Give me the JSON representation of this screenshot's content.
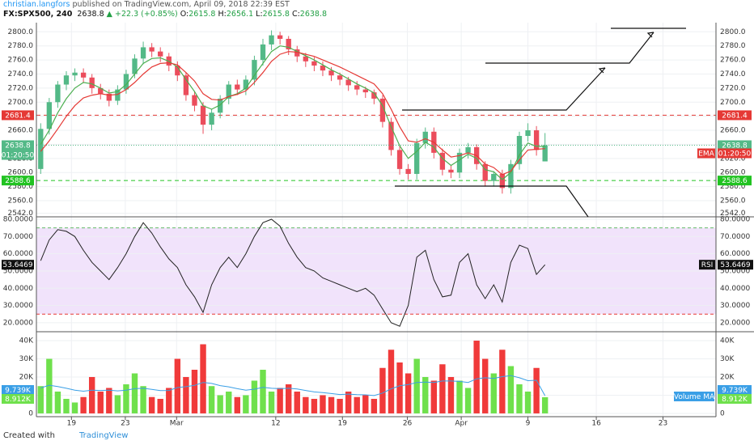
{
  "header": {
    "author": "christian.langfors",
    "published": "published on TradingView.com, April 09, 2018 22:39 EST",
    "symbol": "FX:SPX500, 240",
    "last": "2638.8",
    "arrow": "▲",
    "change": "+22.3 (+0.85%)",
    "ohlc": [
      {
        "label": "O:",
        "value": "2615.8"
      },
      {
        "label": "H:",
        "value": "2656.1"
      },
      {
        "label": "L:",
        "value": "2615.8"
      },
      {
        "label": "C:",
        "value": "2638.8"
      }
    ]
  },
  "footer": {
    "created": "Created with",
    "brand": "TradingView"
  },
  "chart_data": [
    {
      "type": "candlestick",
      "up_color": "#53b987",
      "down_color": "#eb4d5c",
      "open": [
        2605,
        2662,
        2700,
        2725,
        2738,
        2742,
        2735,
        2720,
        2712,
        2702,
        2718,
        2740,
        2762,
        2778,
        2772,
        2765,
        2752,
        2738,
        2710,
        2695,
        2668,
        2685,
        2705,
        2725,
        2718,
        2732,
        2760,
        2782,
        2795,
        2790,
        2775,
        2765,
        2758,
        2752,
        2745,
        2738,
        2732,
        2724,
        2718,
        2714,
        2705,
        2672,
        2632,
        2605,
        2598,
        2642,
        2658,
        2628,
        2604,
        2600,
        2628,
        2636,
        2612,
        2588,
        2598,
        2578,
        2612,
        2652,
        2660,
        2615.8
      ],
      "high": [
        2670,
        2706,
        2730,
        2744,
        2748,
        2748,
        2740,
        2726,
        2718,
        2724,
        2746,
        2768,
        2786,
        2784,
        2778,
        2770,
        2758,
        2742,
        2716,
        2700,
        2690,
        2710,
        2730,
        2732,
        2738,
        2766,
        2790,
        2802,
        2800,
        2794,
        2780,
        2770,
        2764,
        2758,
        2750,
        2742,
        2736,
        2730,
        2722,
        2718,
        2710,
        2678,
        2638,
        2612,
        2648,
        2664,
        2664,
        2634,
        2610,
        2634,
        2642,
        2640,
        2616,
        2602,
        2604,
        2618,
        2658,
        2670,
        2666,
        2656.1
      ],
      "low": [
        2598,
        2654,
        2692,
        2717,
        2730,
        2727,
        2712,
        2704,
        2694,
        2696,
        2712,
        2734,
        2754,
        2764,
        2757,
        2744,
        2730,
        2702,
        2687,
        2655,
        2660,
        2677,
        2697,
        2710,
        2710,
        2724,
        2752,
        2774,
        2782,
        2767,
        2757,
        2750,
        2744,
        2737,
        2730,
        2724,
        2716,
        2710,
        2706,
        2697,
        2664,
        2624,
        2597,
        2590,
        2590,
        2634,
        2620,
        2596,
        2592,
        2592,
        2620,
        2604,
        2580,
        2580,
        2570,
        2570,
        2604,
        2644,
        2624,
        2615.8
      ],
      "close": [
        2662,
        2700,
        2725,
        2738,
        2742,
        2735,
        2720,
        2712,
        2702,
        2718,
        2740,
        2762,
        2778,
        2772,
        2765,
        2752,
        2738,
        2710,
        2695,
        2668,
        2685,
        2705,
        2725,
        2718,
        2732,
        2760,
        2782,
        2795,
        2790,
        2775,
        2765,
        2758,
        2752,
        2745,
        2738,
        2732,
        2724,
        2718,
        2714,
        2705,
        2672,
        2632,
        2605,
        2598,
        2642,
        2658,
        2628,
        2604,
        2600,
        2628,
        2636,
        2612,
        2588,
        2598,
        2578,
        2612,
        2652,
        2660,
        2632,
        2638.8
      ],
      "lines": [
        {
          "color": "#4caf50",
          "values": [
            2640,
            2660,
            2685,
            2705,
            2720,
            2728,
            2726,
            2720,
            2713,
            2715,
            2725,
            2740,
            2755,
            2762,
            2763,
            2758,
            2750,
            2732,
            2715,
            2695,
            2690,
            2696,
            2708,
            2712,
            2720,
            2738,
            2755,
            2772,
            2780,
            2778,
            2772,
            2766,
            2760,
            2753,
            2746,
            2740,
            2733,
            2726,
            2720,
            2713,
            2695,
            2665,
            2638,
            2620,
            2630,
            2643,
            2636,
            2620,
            2610,
            2618,
            2626,
            2620,
            2604,
            2601,
            2590,
            2600,
            2625,
            2642,
            2637,
            2637
          ]
        },
        {
          "color": "#e53935",
          "values": [
            2630,
            2645,
            2662,
            2680,
            2695,
            2706,
            2710,
            2712,
            2710,
            2711,
            2718,
            2728,
            2740,
            2750,
            2755,
            2756,
            2753,
            2742,
            2730,
            2712,
            2704,
            2703,
            2708,
            2711,
            2716,
            2728,
            2742,
            2758,
            2768,
            2772,
            2771,
            2768,
            2765,
            2760,
            2755,
            2750,
            2744,
            2738,
            2732,
            2726,
            2712,
            2690,
            2665,
            2645,
            2643,
            2648,
            2643,
            2632,
            2622,
            2624,
            2628,
            2624,
            2612,
            2607,
            2597,
            2602,
            2618,
            2632,
            2633,
            2634
          ]
        }
      ],
      "indicator_label": "EMA",
      "countdown": "01:20:50",
      "levels": [
        {
          "value": 2681.4,
          "color": "#e53935"
        },
        {
          "value": 2588.6,
          "color": "#22c322"
        }
      ],
      "xlim": [
        -0.5,
        79
      ],
      "xticks": [
        {
          "value": 3.6,
          "label": "19"
        },
        {
          "value": 9.9,
          "label": "23"
        },
        {
          "value": 15.9,
          "label": "Mar"
        },
        {
          "value": 27.5,
          "label": "12"
        },
        {
          "value": 35.3,
          "label": "19"
        },
        {
          "value": 42.9,
          "label": "26"
        },
        {
          "value": 49.2,
          "label": "Apr"
        },
        {
          "value": 57,
          "label": "9"
        },
        {
          "value": 65,
          "label": "16"
        },
        {
          "value": 72.8,
          "label": "23"
        }
      ],
      "ylim": [
        2537,
        2813
      ],
      "yticks": [
        {
          "value": 2800,
          "label": "2800.0"
        },
        {
          "value": 2780,
          "label": "2780.0"
        },
        {
          "value": 2760,
          "label": "2760.0"
        },
        {
          "value": 2740,
          "label": "2740.0"
        },
        {
          "value": 2720,
          "label": "2720.0"
        },
        {
          "value": 2700,
          "label": "2700.0"
        },
        {
          "value": 2680,
          "label": "2680.0"
        },
        {
          "value": 2660,
          "label": "2660.0"
        },
        {
          "value": 2640,
          "label": "2640.0"
        },
        {
          "value": 2620,
          "label": "2620.0"
        },
        {
          "value": 2600,
          "label": "2600.0"
        },
        {
          "value": 2580,
          "label": "2580.0"
        },
        {
          "value": 2560,
          "label": "2560.0"
        },
        {
          "value": 2542,
          "label": "2542.0"
        }
      ],
      "grid": true
    },
    {
      "type": "line",
      "name": "RSI",
      "color": "#222222",
      "band_color": "#f1e3fb",
      "values": [
        56,
        68,
        74,
        73,
        70,
        62,
        55,
        50,
        45,
        52,
        60,
        70,
        78,
        72,
        64,
        57,
        52,
        42,
        35,
        26,
        42,
        52,
        58,
        52,
        60,
        70,
        78,
        80,
        76,
        66,
        58,
        52,
        50,
        46,
        44,
        42,
        40,
        38,
        40,
        36,
        28,
        20,
        18,
        30,
        58,
        62,
        45,
        35,
        36,
        55,
        60,
        42,
        34,
        42,
        32,
        55,
        65,
        63,
        48,
        53.6469
      ],
      "levels": [
        {
          "value": 75,
          "color": "#66bb6a"
        },
        {
          "value": 25,
          "color": "#e53935"
        }
      ],
      "ylim": [
        14.8,
        81.4
      ],
      "yticks": [
        {
          "value": 80,
          "label": "80.0000"
        },
        {
          "value": 70,
          "label": "70.0000"
        },
        {
          "value": 60,
          "label": "60.0000"
        },
        {
          "value": 50,
          "label": "50.0000"
        },
        {
          "value": 40,
          "label": "40.0000"
        },
        {
          "value": 30,
          "label": "30.0000"
        },
        {
          "value": 20,
          "label": "20.0000"
        }
      ],
      "grid": true
    },
    {
      "type": "bar",
      "up_color": "#6fe04c",
      "down_color": "#f03a3a",
      "values": [
        15000,
        30000,
        12000,
        8000,
        6000,
        9000,
        20000,
        12000,
        14000,
        10000,
        16000,
        22000,
        15000,
        9000,
        8000,
        14000,
        30000,
        20000,
        24000,
        38000,
        15000,
        10000,
        12000,
        9000,
        10000,
        18000,
        24000,
        12000,
        14000,
        16000,
        12000,
        9000,
        8000,
        10000,
        9000,
        8000,
        12000,
        9000,
        10000,
        8000,
        25000,
        35000,
        28000,
        22000,
        30000,
        20000,
        18000,
        27000,
        20000,
        18000,
        14000,
        40000,
        30000,
        22000,
        35000,
        26000,
        16000,
        12000,
        25000,
        8912
      ],
      "value_label": "8.912K",
      "ma": {
        "name": "Volume MA",
        "color": "#3a9fe6",
        "value_label": "9.739K",
        "values": [
          14000,
          15500,
          14800,
          13800,
          12800,
          12200,
          12800,
          12600,
          12800,
          12400,
          12800,
          13600,
          13800,
          13200,
          12500,
          12600,
          14200,
          14700,
          15400,
          17000,
          16500,
          15300,
          14600,
          13600,
          12800,
          13300,
          14300,
          13800,
          13600,
          13800,
          13400,
          12600,
          11800,
          11400,
          10900,
          10400,
          10600,
          10300,
          10200,
          9800,
          11200,
          13500,
          15200,
          15800,
          17000,
          17200,
          17000,
          17800,
          17800,
          17600,
          17000,
          19000,
          19600,
          19200,
          20200,
          20800,
          19600,
          18000,
          18200,
          9739
        ]
      },
      "ylim": [
        -1800,
        44900
      ],
      "yticks": [
        {
          "value": 40000,
          "label": "40K"
        },
        {
          "value": 30000,
          "label": "30K"
        },
        {
          "value": 20000,
          "label": "20K"
        },
        {
          "value": 10000,
          "label": "10K"
        },
        0
      ],
      "grid": true
    }
  ]
}
